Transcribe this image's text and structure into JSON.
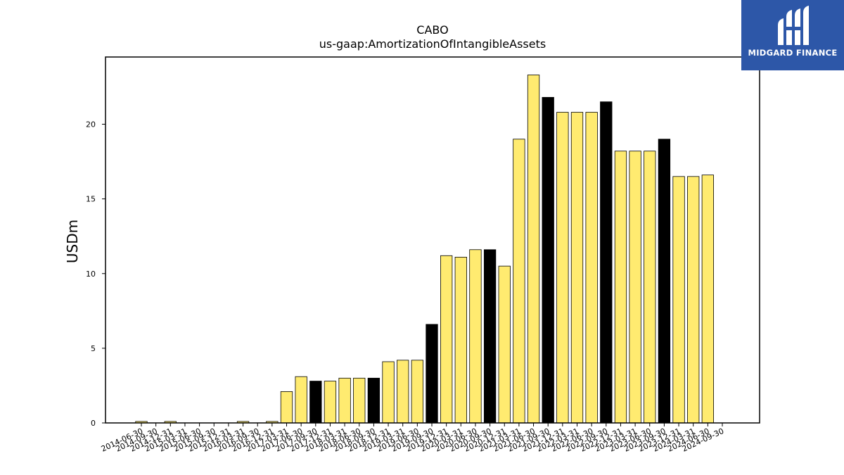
{
  "brand": {
    "name": "MIDGARD FINANCE",
    "bg_color": "#2d57a8"
  },
  "chart_data": {
    "type": "bar",
    "title": "CABO",
    "subtitle": "us-gaap:AmortizationOfIntangibleAssets",
    "xlabel": "",
    "ylabel": "USDm",
    "ylim": [
      0,
      24.5
    ],
    "yticks": [
      0,
      5,
      10,
      15,
      20
    ],
    "grid": false,
    "colors": {
      "default": "#ffeb70",
      "highlight": "#000000",
      "edge": "#000000"
    },
    "categories": [
      "2014-06-30",
      "2014-09-30",
      "2014-12-31",
      "2015-03-31",
      "2015-06-30",
      "2015-09-30",
      "2015-12-31",
      "2016-03-31",
      "2016-09-30",
      "2016-12-31",
      "2017-03-31",
      "2017-06-30",
      "2017-09-30",
      "2017-12-31",
      "2018-03-31",
      "2018-06-30",
      "2018-09-30",
      "2018-12-31",
      "2019-03-31",
      "2019-06-30",
      "2019-09-30",
      "2019-12-31",
      "2020-03-31",
      "2020-06-30",
      "2020-09-30",
      "2020-12-31",
      "2021-03-31",
      "2021-06-30",
      "2021-09-30",
      "2021-12-31",
      "2022-03-31",
      "2022-06-30",
      "2022-09-30",
      "2022-12-31",
      "2023-03-31",
      "2023-06-30",
      "2023-09-30",
      "2023-12-31",
      "2024-03-31",
      "2024-06-30",
      "2024-09-30"
    ],
    "values": [
      0.1,
      0,
      0.1,
      0,
      0,
      0,
      0,
      0.1,
      0,
      0.1,
      2.1,
      3.1,
      2.8,
      2.8,
      3.0,
      3.0,
      3.0,
      4.1,
      4.2,
      4.2,
      6.6,
      11.2,
      11.1,
      11.6,
      11.6,
      10.5,
      19.0,
      23.3,
      21.8,
      20.8,
      20.8,
      20.8,
      21.5,
      18.2,
      18.2,
      18.2,
      19.0,
      16.5,
      16.5,
      16.6,
      null
    ],
    "highlight": [
      false,
      false,
      false,
      false,
      false,
      false,
      false,
      false,
      false,
      false,
      false,
      false,
      true,
      false,
      false,
      false,
      true,
      false,
      false,
      false,
      true,
      false,
      false,
      false,
      true,
      false,
      false,
      false,
      true,
      false,
      false,
      false,
      true,
      false,
      false,
      false,
      true,
      false,
      false,
      false,
      false
    ]
  }
}
